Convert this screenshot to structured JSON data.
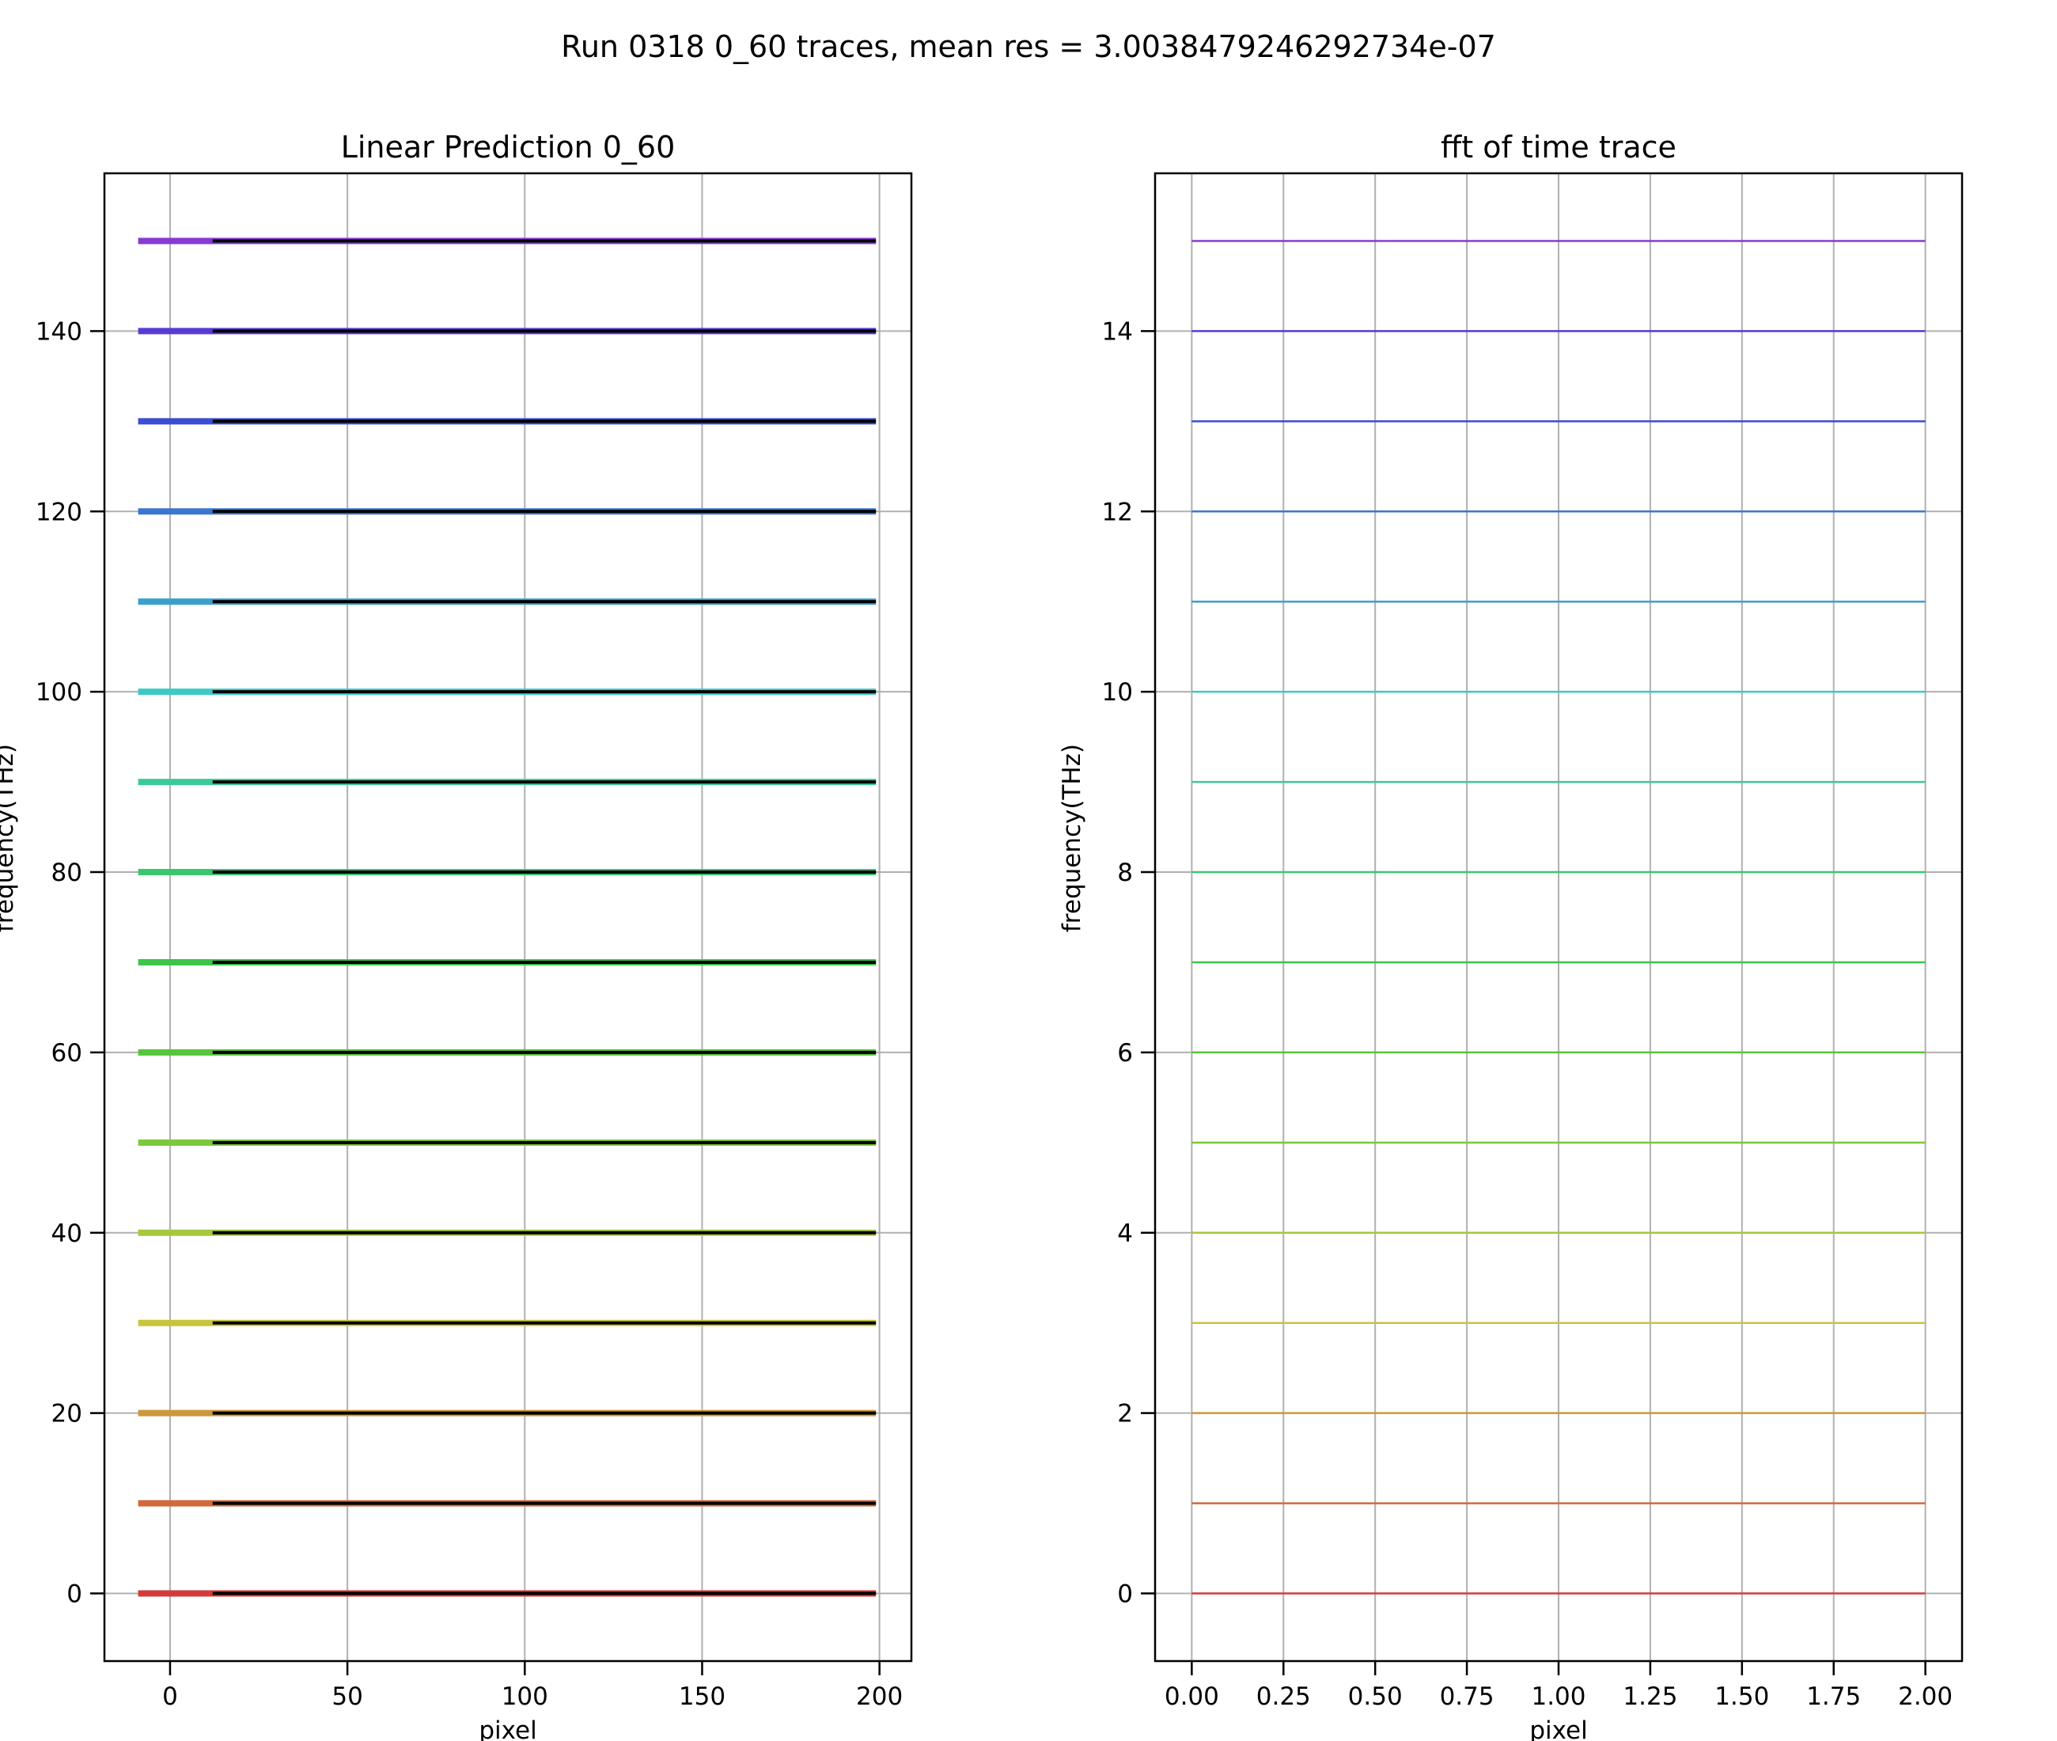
{
  "figure": {
    "suptitle": "Run 0318 0_60 traces, mean res = 3.0038479246292734e-07"
  },
  "chart_data": [
    {
      "type": "line",
      "title": "Linear Prediction 0_60",
      "xlabel": "pixel",
      "ylabel": "frequency(THz)",
      "xlim": [
        -18.5,
        209
      ],
      "ylim": [
        -7.5,
        157.5
      ],
      "xticks": [
        0,
        50,
        100,
        150,
        200
      ],
      "xtick_labels": [
        "0",
        "50",
        "100",
        "150",
        "200"
      ],
      "yticks": [
        0,
        20,
        40,
        60,
        80,
        100,
        120,
        140
      ],
      "ytick_labels": [
        "0",
        "20",
        "40",
        "60",
        "80",
        "100",
        "120",
        "140"
      ],
      "grid": true,
      "legend": "none",
      "series": [
        {
          "color": "#d33b3b",
          "colored_x": [
            -9,
            12
          ],
          "fit_x": [
            12,
            199
          ],
          "y": 0
        },
        {
          "color": "#d06a3b",
          "colored_x": [
            -9,
            12
          ],
          "fit_x": [
            12,
            199
          ],
          "y": 10
        },
        {
          "color": "#cc983b",
          "colored_x": [
            -9,
            12
          ],
          "fit_x": [
            12,
            199
          ],
          "y": 20
        },
        {
          "color": "#c9c43b",
          "colored_x": [
            -9,
            12
          ],
          "fit_x": [
            12,
            199
          ],
          "y": 30
        },
        {
          "color": "#a6c83b",
          "colored_x": [
            -9,
            12
          ],
          "fit_x": [
            12,
            199
          ],
          "y": 40
        },
        {
          "color": "#7cc83b",
          "colored_x": [
            -9,
            12
          ],
          "fit_x": [
            12,
            199
          ],
          "y": 50
        },
        {
          "color": "#55c63b",
          "colored_x": [
            -9,
            12
          ],
          "fit_x": [
            12,
            199
          ],
          "y": 60
        },
        {
          "color": "#3bc64a",
          "colored_x": [
            -9,
            12
          ],
          "fit_x": [
            12,
            199
          ],
          "y": 70
        },
        {
          "color": "#3bc66e",
          "colored_x": [
            -9,
            12
          ],
          "fit_x": [
            12,
            199
          ],
          "y": 80
        },
        {
          "color": "#3bc99a",
          "colored_x": [
            -9,
            12
          ],
          "fit_x": [
            12,
            199
          ],
          "y": 90
        },
        {
          "color": "#3bcac7",
          "colored_x": [
            -9,
            12
          ],
          "fit_x": [
            12,
            199
          ],
          "y": 100
        },
        {
          "color": "#3b9fcc",
          "colored_x": [
            -9,
            12
          ],
          "fit_x": [
            12,
            199
          ],
          "y": 110
        },
        {
          "color": "#3b77cf",
          "colored_x": [
            -9,
            12
          ],
          "fit_x": [
            12,
            199
          ],
          "y": 120
        },
        {
          "color": "#3b4dd1",
          "colored_x": [
            -9,
            12
          ],
          "fit_x": [
            12,
            199
          ],
          "y": 130
        },
        {
          "color": "#5a3bd2",
          "colored_x": [
            -9,
            12
          ],
          "fit_x": [
            12,
            199
          ],
          "y": 140
        },
        {
          "color": "#863bd2",
          "colored_x": [
            -9,
            12
          ],
          "fit_x": [
            12,
            199
          ],
          "y": 150
        }
      ]
    },
    {
      "type": "line",
      "title": "fft of time trace",
      "xlabel": "pixel",
      "ylabel": "frequency(THz)",
      "xlim": [
        -0.1,
        2.1
      ],
      "ylim": [
        -0.75,
        15.75
      ],
      "xticks": [
        0,
        0.25,
        0.5,
        0.75,
        1,
        1.25,
        1.5,
        1.75,
        2
      ],
      "xtick_labels": [
        "0.00",
        "0.25",
        "0.50",
        "0.75",
        "1.00",
        "1.25",
        "1.50",
        "1.75",
        "2.00"
      ],
      "yticks": [
        0,
        2,
        4,
        6,
        8,
        10,
        12,
        14
      ],
      "ytick_labels": [
        "0",
        "2",
        "4",
        "6",
        "8",
        "10",
        "12",
        "14"
      ],
      "grid": true,
      "legend": "none",
      "series": [
        {
          "color": "#d33b3b",
          "x": [
            0,
            2
          ],
          "y": 0
        },
        {
          "color": "#d06a3b",
          "x": [
            0,
            2
          ],
          "y": 1
        },
        {
          "color": "#cc983b",
          "x": [
            0,
            2
          ],
          "y": 2
        },
        {
          "color": "#c9c43b",
          "x": [
            0,
            2
          ],
          "y": 3
        },
        {
          "color": "#a6c83b",
          "x": [
            0,
            2
          ],
          "y": 4
        },
        {
          "color": "#7cc83b",
          "x": [
            0,
            2
          ],
          "y": 5
        },
        {
          "color": "#55c63b",
          "x": [
            0,
            2
          ],
          "y": 6
        },
        {
          "color": "#3bc64a",
          "x": [
            0,
            2
          ],
          "y": 7
        },
        {
          "color": "#3bc66e",
          "x": [
            0,
            2
          ],
          "y": 8
        },
        {
          "color": "#3bc99a",
          "x": [
            0,
            2
          ],
          "y": 9
        },
        {
          "color": "#3bcac7",
          "x": [
            0,
            2
          ],
          "y": 10
        },
        {
          "color": "#3b9fcc",
          "x": [
            0,
            2
          ],
          "y": 11
        },
        {
          "color": "#3b77cf",
          "x": [
            0,
            2
          ],
          "y": 12
        },
        {
          "color": "#3b4dd1",
          "x": [
            0,
            2
          ],
          "y": 13
        },
        {
          "color": "#5a3bd2",
          "x": [
            0,
            2
          ],
          "y": 14
        },
        {
          "color": "#863bd2",
          "x": [
            0,
            2
          ],
          "y": 15
        }
      ]
    }
  ]
}
